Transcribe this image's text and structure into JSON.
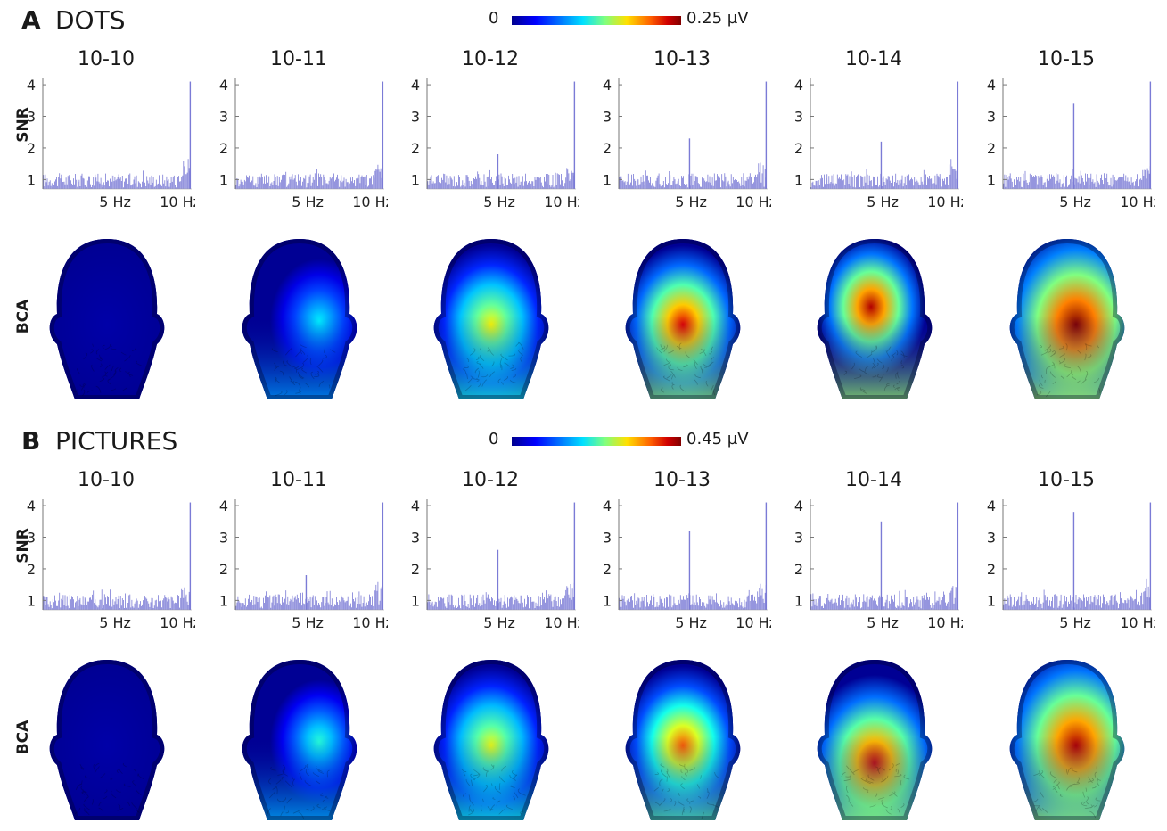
{
  "panels": [
    {
      "letter": "A",
      "title": "DOTS",
      "colorbar": {
        "min_label": "0",
        "max_label": "0.25 µV"
      },
      "row_labels": {
        "snr": "SNR",
        "bca": "BCA"
      },
      "conditions": [
        {
          "label": "10-10",
          "peak5": 0,
          "peak10": 4.1,
          "bca": 0.02,
          "focus": "none"
        },
        {
          "label": "10-11",
          "peak5": 0,
          "peak10": 4.1,
          "bca": 0.35,
          "focus": "right"
        },
        {
          "label": "10-12",
          "peak5": 1.8,
          "peak10": 4.1,
          "bca": 0.62,
          "focus": "center"
        },
        {
          "label": "10-13",
          "peak5": 2.3,
          "peak10": 4.1,
          "bca": 0.9,
          "focus": "center"
        },
        {
          "label": "10-14",
          "peak5": 2.2,
          "peak10": 4.1,
          "bca": 0.95,
          "focus": "upper"
        },
        {
          "label": "10-15",
          "peak5": 3.4,
          "peak10": 4.1,
          "bca": 1.0,
          "focus": "wide"
        }
      ]
    },
    {
      "letter": "B",
      "title": "PICTURES",
      "colorbar": {
        "min_label": "0",
        "max_label": "0.45 µV"
      },
      "row_labels": {
        "snr": "SNR",
        "bca": "BCA"
      },
      "conditions": [
        {
          "label": "10-10",
          "peak5": 0,
          "peak10": 4.1,
          "bca": 0.02,
          "focus": "none"
        },
        {
          "label": "10-11",
          "peak5": 1.8,
          "peak10": 4.1,
          "bca": 0.4,
          "focus": "right"
        },
        {
          "label": "10-12",
          "peak5": 2.6,
          "peak10": 4.1,
          "bca": 0.6,
          "focus": "center"
        },
        {
          "label": "10-13",
          "peak5": 3.2,
          "peak10": 4.1,
          "bca": 0.78,
          "focus": "center"
        },
        {
          "label": "10-14",
          "peak5": 3.5,
          "peak10": 4.1,
          "bca": 0.92,
          "focus": "low"
        },
        {
          "label": "10-15",
          "peak5": 3.8,
          "peak10": 4.1,
          "bca": 0.95,
          "focus": "wide"
        }
      ]
    }
  ],
  "spectrum_axis": {
    "y_ticks": [
      "1",
      "2",
      "3",
      "4"
    ],
    "x_ticks": [
      "5 Hz",
      "10 Hz"
    ],
    "y_range": [
      0.7,
      4.2
    ],
    "x_range": [
      0,
      10.3
    ]
  },
  "colors": {
    "spectrum_line": "#7b7bd6",
    "head_base": "#00008f"
  }
}
